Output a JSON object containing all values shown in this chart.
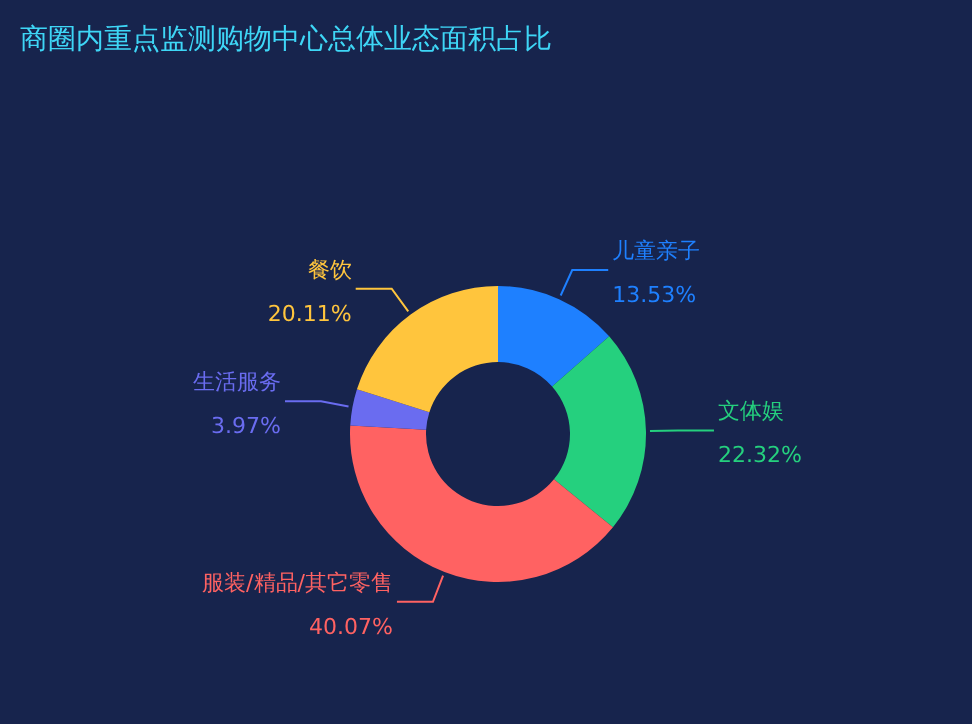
{
  "chart_data": {
    "type": "donut",
    "title": "商圈内重点监测购物中心总体业态面积占比",
    "categories": [
      "儿童亲子",
      "文体娱",
      "服装/精品/其它零售",
      "生活服务",
      "餐饮"
    ],
    "values": [
      13.53,
      22.32,
      40.07,
      3.97,
      20.11
    ],
    "value_labels": [
      "13.53%",
      "22.32%",
      "40.07%",
      "3.97%",
      "20.11%"
    ],
    "colors": [
      "#1e80ff",
      "#25d07e",
      "#ff6262",
      "#6a6cf0",
      "#ffc53d"
    ],
    "legend": false
  }
}
